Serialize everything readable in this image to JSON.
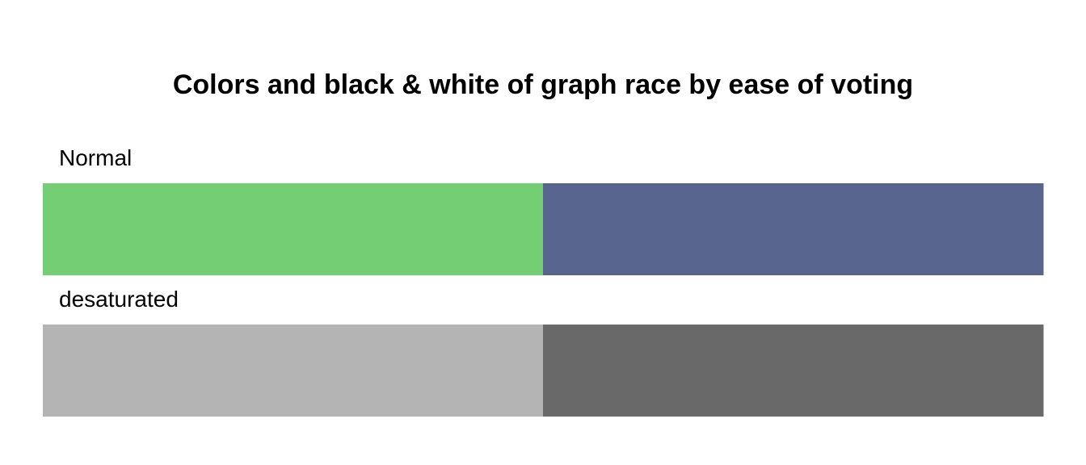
{
  "chart_data": {
    "type": "swatch",
    "title": "Colors and black & white of graph race by ease of voting",
    "rows": [
      {
        "label": "Normal",
        "colors": [
          "#74CE74",
          "#58668F"
        ]
      },
      {
        "label": "desaturated",
        "colors": [
          "#B4B4B4",
          "#696969"
        ]
      }
    ]
  }
}
